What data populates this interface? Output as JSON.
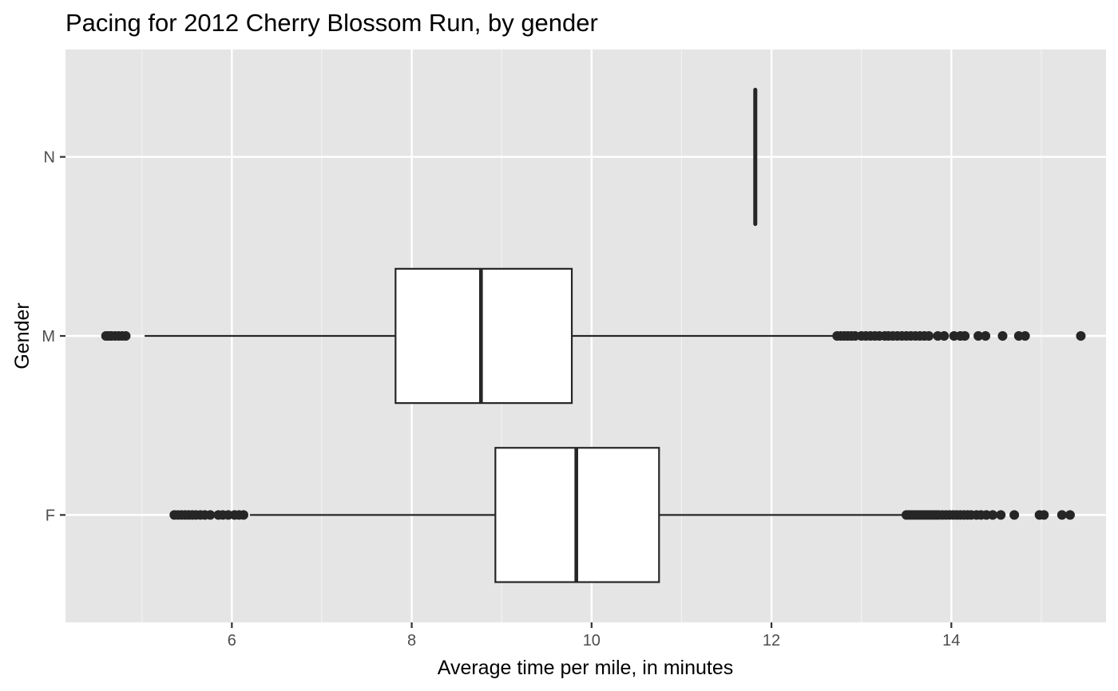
{
  "chart_data": {
    "type": "boxplot",
    "orientation": "horizontal",
    "title": "Pacing for 2012 Cherry Blossom Run, by gender",
    "xlabel": "Average time per mile, in minutes",
    "ylabel": "Gender",
    "xlim": [
      4.15,
      15.72
    ],
    "x_ticks": [
      6,
      8,
      10,
      12,
      14
    ],
    "x_tick_labels": [
      "6",
      "8",
      "10",
      "12",
      "14"
    ],
    "categories": [
      "F",
      "M",
      "N"
    ],
    "grid": true,
    "background": "#e5e5e5",
    "box_fill": "#ffffff",
    "line_color": "#262626",
    "boxes": [
      {
        "category": "F",
        "min": 6.2,
        "q1": 8.93,
        "median": 9.83,
        "q3": 10.75,
        "max": 13.48,
        "outliers": [
          5.36,
          5.4,
          5.44,
          5.48,
          5.52,
          5.56,
          5.6,
          5.65,
          5.7,
          5.76,
          5.85,
          5.9,
          5.96,
          6.03,
          6.08,
          6.13,
          13.5,
          13.53,
          13.56,
          13.59,
          13.62,
          13.65,
          13.68,
          13.71,
          13.74,
          13.77,
          13.8,
          13.83,
          13.86,
          13.9,
          13.94,
          13.98,
          14.02,
          14.06,
          14.1,
          14.14,
          14.18,
          14.22,
          14.28,
          14.33,
          14.39,
          14.46,
          14.55,
          14.7,
          14.98,
          15.03,
          15.23,
          15.32
        ]
      },
      {
        "category": "M",
        "min": 5.03,
        "q1": 7.82,
        "median": 8.77,
        "q3": 9.78,
        "max": 12.7,
        "outliers": [
          4.6,
          4.63,
          4.66,
          4.7,
          4.74,
          4.78,
          4.82,
          12.73,
          12.77,
          12.81,
          12.85,
          12.89,
          12.93,
          13.0,
          13.05,
          13.1,
          13.15,
          13.2,
          13.26,
          13.3,
          13.35,
          13.4,
          13.45,
          13.5,
          13.55,
          13.6,
          13.65,
          13.7,
          13.75,
          13.85,
          13.92,
          14.03,
          14.1,
          14.15,
          14.3,
          14.38,
          14.57,
          14.75,
          14.82,
          15.44
        ]
      },
      {
        "category": "N",
        "min": 11.82,
        "q1": 11.82,
        "median": 11.82,
        "q3": 11.82,
        "max": 11.82,
        "outliers": []
      }
    ]
  }
}
